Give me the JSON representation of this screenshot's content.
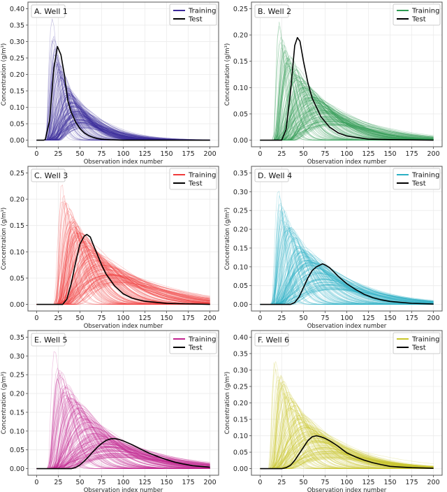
{
  "chart_data": [
    {
      "type": "line",
      "title": "A. Well 1",
      "xlabel": "Observation index number",
      "ylabel": "Concentration (g/m³)",
      "xlim": [
        0,
        200
      ],
      "yticks": [
        0,
        0.05,
        0.1,
        0.15,
        0.2,
        0.25,
        0.3,
        0.35,
        0.4
      ],
      "xticks": [
        0,
        25,
        50,
        75,
        100,
        125,
        150,
        175,
        200
      ],
      "grid": true,
      "legend": "top-right",
      "legend_entries": [
        "Training",
        "Test"
      ],
      "color": "#3b2a9a",
      "training": {
        "n_curves": 160,
        "onset": 10,
        "peak_x_range": [
          18,
          55
        ],
        "peak_y_range": [
          0.36,
          0.04
        ]
      },
      "test": [
        [
          0,
          0
        ],
        [
          8,
          0
        ],
        [
          10,
          0.002
        ],
        [
          15,
          0.06
        ],
        [
          20,
          0.22
        ],
        [
          24,
          0.285
        ],
        [
          28,
          0.26
        ],
        [
          32,
          0.2
        ],
        [
          36,
          0.12
        ],
        [
          40,
          0.085
        ],
        [
          45,
          0.055
        ],
        [
          50,
          0.035
        ],
        [
          55,
          0.022
        ],
        [
          60,
          0.014
        ],
        [
          65,
          0.009
        ],
        [
          70,
          0.005
        ],
        [
          75,
          0.003
        ],
        [
          85,
          0.001
        ],
        [
          100,
          0
        ],
        [
          200,
          0
        ]
      ]
    },
    {
      "type": "line",
      "title": "B. Well 2",
      "xlabel": "Observation index number",
      "ylabel": "Concentration (g/m³)",
      "xlim": [
        0,
        200
      ],
      "yticks": [
        0,
        0.05,
        0.1,
        0.15,
        0.2,
        0.25
      ],
      "xticks": [
        0,
        25,
        50,
        75,
        100,
        125,
        150,
        175,
        200
      ],
      "grid": true,
      "legend": "top-right",
      "legend_entries": [
        "Training",
        "Test"
      ],
      "color": "#2e9b52",
      "training": {
        "n_curves": 160,
        "onset": 15,
        "peak_x_range": [
          22,
          85
        ],
        "peak_y_range": [
          0.23,
          0.03
        ]
      },
      "test": [
        [
          0,
          0
        ],
        [
          25,
          0
        ],
        [
          30,
          0.02
        ],
        [
          35,
          0.09
        ],
        [
          40,
          0.18
        ],
        [
          43,
          0.195
        ],
        [
          46,
          0.188
        ],
        [
          50,
          0.15
        ],
        [
          55,
          0.11
        ],
        [
          60,
          0.08
        ],
        [
          70,
          0.045
        ],
        [
          80,
          0.025
        ],
        [
          90,
          0.014
        ],
        [
          100,
          0.008
        ],
        [
          125,
          0.002
        ],
        [
          150,
          0.001
        ],
        [
          200,
          0
        ]
      ]
    },
    {
      "type": "line",
      "title": "C. Well 3",
      "xlabel": "Observation index number",
      "ylabel": "Concentration (g/m³)",
      "xlim": [
        0,
        200
      ],
      "yticks": [
        0,
        0.05,
        0.1,
        0.15,
        0.2,
        0.25
      ],
      "xticks": [
        0,
        25,
        50,
        75,
        100,
        125,
        150,
        175,
        200
      ],
      "grid": true,
      "legend": "top-right",
      "legend_entries": [
        "Training",
        "Test"
      ],
      "color": "#f03a3a",
      "training": {
        "n_curves": 160,
        "onset": 20,
        "peak_x_range": [
          28,
          95
        ],
        "peak_y_range": [
          0.24,
          0.04
        ]
      },
      "test": [
        [
          0,
          0
        ],
        [
          30,
          0
        ],
        [
          35,
          0.01
        ],
        [
          40,
          0.04
        ],
        [
          45,
          0.08
        ],
        [
          50,
          0.115
        ],
        [
          55,
          0.13
        ],
        [
          58,
          0.133
        ],
        [
          62,
          0.128
        ],
        [
          65,
          0.115
        ],
        [
          70,
          0.095
        ],
        [
          75,
          0.075
        ],
        [
          80,
          0.058
        ],
        [
          90,
          0.035
        ],
        [
          100,
          0.02
        ],
        [
          110,
          0.012
        ],
        [
          125,
          0.006
        ],
        [
          150,
          0.002
        ],
        [
          175,
          0.001
        ],
        [
          200,
          0
        ]
      ]
    },
    {
      "type": "line",
      "title": "D. Well 4",
      "xlabel": "Observation index number",
      "ylabel": "Concentration (g/m³)",
      "xlim": [
        0,
        200
      ],
      "yticks": [
        0,
        0.05,
        0.1,
        0.15,
        0.2,
        0.25,
        0.3,
        0.35
      ],
      "xticks": [
        0,
        25,
        50,
        75,
        100,
        125,
        150,
        175,
        200
      ],
      "grid": true,
      "legend": "top-right",
      "legend_entries": [
        "Training",
        "Test"
      ],
      "color": "#2bb0c4",
      "training": {
        "n_curves": 160,
        "onset": 12,
        "peak_x_range": [
          20,
          85
        ],
        "peak_y_range": [
          0.32,
          0.04
        ]
      },
      "test": [
        [
          0,
          0
        ],
        [
          35,
          0
        ],
        [
          40,
          0.005
        ],
        [
          45,
          0.02
        ],
        [
          50,
          0.045
        ],
        [
          55,
          0.07
        ],
        [
          60,
          0.09
        ],
        [
          65,
          0.1
        ],
        [
          72,
          0.108
        ],
        [
          75,
          0.105
        ],
        [
          80,
          0.098
        ],
        [
          85,
          0.087
        ],
        [
          90,
          0.075
        ],
        [
          100,
          0.055
        ],
        [
          110,
          0.04
        ],
        [
          120,
          0.027
        ],
        [
          130,
          0.018
        ],
        [
          140,
          0.012
        ],
        [
          150,
          0.008
        ],
        [
          175,
          0.003
        ],
        [
          200,
          0.001
        ]
      ]
    },
    {
      "type": "line",
      "title": "E. Well 5",
      "xlabel": "Observation index number",
      "ylabel": "Concentration (g/m³)",
      "xlim": [
        0,
        200
      ],
      "yticks": [
        0,
        0.05,
        0.1,
        0.15,
        0.2,
        0.25,
        0.3,
        0.35
      ],
      "xticks": [
        0,
        25,
        50,
        75,
        100,
        125,
        150,
        175,
        200
      ],
      "grid": true,
      "legend": "top-right",
      "legend_entries": [
        "Training",
        "Test"
      ],
      "color": "#c2248f",
      "training": {
        "n_curves": 160,
        "onset": 12,
        "peak_x_range": [
          20,
          95
        ],
        "peak_y_range": [
          0.33,
          0.03
        ]
      },
      "test": [
        [
          0,
          0
        ],
        [
          40,
          0
        ],
        [
          45,
          0.003
        ],
        [
          50,
          0.01
        ],
        [
          55,
          0.02
        ],
        [
          60,
          0.032
        ],
        [
          65,
          0.045
        ],
        [
          70,
          0.057
        ],
        [
          75,
          0.067
        ],
        [
          80,
          0.075
        ],
        [
          85,
          0.079
        ],
        [
          90,
          0.08
        ],
        [
          95,
          0.078
        ],
        [
          100,
          0.074
        ],
        [
          110,
          0.064
        ],
        [
          120,
          0.052
        ],
        [
          130,
          0.041
        ],
        [
          140,
          0.032
        ],
        [
          150,
          0.024
        ],
        [
          160,
          0.017
        ],
        [
          170,
          0.012
        ],
        [
          180,
          0.008
        ],
        [
          190,
          0.006
        ],
        [
          200,
          0.004
        ]
      ]
    },
    {
      "type": "line",
      "title": "F. Well 6",
      "xlabel": "Observation index number",
      "ylabel": "Concentration (g/m³)",
      "xlim": [
        0,
        200
      ],
      "yticks": [
        0,
        0.05,
        0.1,
        0.15,
        0.2,
        0.25,
        0.3,
        0.35,
        0.4
      ],
      "xticks": [
        0,
        25,
        50,
        75,
        100,
        125,
        150,
        175,
        200
      ],
      "grid": true,
      "legend": "top-right",
      "legend_entries": [
        "Training",
        "Test"
      ],
      "color": "#c9c62a",
      "training": {
        "n_curves": 160,
        "onset": 10,
        "peak_x_range": [
          16,
          85
        ],
        "peak_y_range": [
          0.37,
          0.03
        ]
      },
      "test": [
        [
          0,
          0
        ],
        [
          25,
          0
        ],
        [
          30,
          0.003
        ],
        [
          35,
          0.01
        ],
        [
          40,
          0.025
        ],
        [
          45,
          0.045
        ],
        [
          50,
          0.065
        ],
        [
          55,
          0.085
        ],
        [
          60,
          0.097
        ],
        [
          65,
          0.1
        ],
        [
          70,
          0.097
        ],
        [
          75,
          0.092
        ],
        [
          80,
          0.085
        ],
        [
          85,
          0.077
        ],
        [
          90,
          0.068
        ],
        [
          95,
          0.058
        ],
        [
          100,
          0.048
        ],
        [
          110,
          0.036
        ],
        [
          120,
          0.026
        ],
        [
          130,
          0.018
        ],
        [
          140,
          0.012
        ],
        [
          150,
          0.007
        ],
        [
          160,
          0.005
        ],
        [
          175,
          0.003
        ],
        [
          200,
          0.001
        ]
      ]
    }
  ]
}
